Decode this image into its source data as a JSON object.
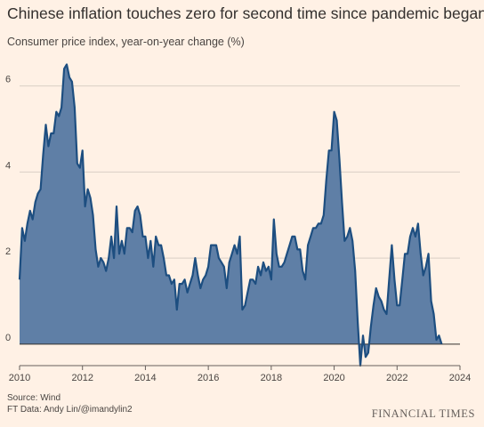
{
  "header": {
    "title": "Chinese inflation touches zero for second time since pandemic began",
    "subtitle": "Consumer price index, year-on-year change (%)"
  },
  "footer": {
    "source": "Source: Wind",
    "credit": "FT Data: Andy Lin/@imandylin2",
    "brand": "FINANCIAL TIMES"
  },
  "colors": {
    "background": "#fff1e5",
    "area_fill": "#5f7fa6",
    "line": "#1d4e80",
    "grid": "#d9cfc5",
    "zero_line": "#33302e"
  },
  "chart_data": {
    "type": "area",
    "title": "Chinese inflation touches zero for second time since pandemic began",
    "subtitle": "Consumer price index, year-on-year change (%)",
    "xlabel": "",
    "ylabel": "",
    "xlim": [
      2010,
      2024
    ],
    "ylim": [
      -0.5,
      6.8
    ],
    "x_ticks": [
      2010,
      2012,
      2014,
      2016,
      2018,
      2020,
      2022,
      2024
    ],
    "y_ticks": [
      0,
      2,
      4,
      6
    ],
    "grid": true,
    "series": [
      {
        "x": [
          2010.0,
          2010.083,
          2010.167,
          2010.25,
          2010.333,
          2010.417,
          2010.5,
          2010.583,
          2010.667,
          2010.75,
          2010.833,
          2010.917,
          2011.0,
          2011.083,
          2011.167,
          2011.25,
          2011.333,
          2011.417,
          2011.5,
          2011.583,
          2011.667,
          2011.75,
          2011.833,
          2011.917,
          2012.0,
          2012.083,
          2012.167,
          2012.25,
          2012.333,
          2012.417,
          2012.5,
          2012.583,
          2012.667,
          2012.75,
          2012.833,
          2012.917,
          2013.0,
          2013.083,
          2013.167,
          2013.25,
          2013.333,
          2013.417,
          2013.5,
          2013.583,
          2013.667,
          2013.75,
          2013.833,
          2013.917,
          2014.0,
          2014.083,
          2014.167,
          2014.25,
          2014.333,
          2014.417,
          2014.5,
          2014.583,
          2014.667,
          2014.75,
          2014.833,
          2014.917,
          2015.0,
          2015.083,
          2015.167,
          2015.25,
          2015.333,
          2015.417,
          2015.5,
          2015.583,
          2015.667,
          2015.75,
          2015.833,
          2015.917,
          2016.0,
          2016.083,
          2016.167,
          2016.25,
          2016.333,
          2016.417,
          2016.5,
          2016.583,
          2016.667,
          2016.75,
          2016.833,
          2016.917,
          2017.0,
          2017.083,
          2017.167,
          2017.25,
          2017.333,
          2017.417,
          2017.5,
          2017.583,
          2017.667,
          2017.75,
          2017.833,
          2017.917,
          2018.0,
          2018.083,
          2018.167,
          2018.25,
          2018.333,
          2018.417,
          2018.5,
          2018.583,
          2018.667,
          2018.75,
          2018.833,
          2018.917,
          2019.0,
          2019.083,
          2019.167,
          2019.25,
          2019.333,
          2019.417,
          2019.5,
          2019.583,
          2019.667,
          2019.75,
          2019.833,
          2019.917,
          2020.0,
          2020.083,
          2020.167,
          2020.25,
          2020.333,
          2020.417,
          2020.5,
          2020.583,
          2020.667,
          2020.75,
          2020.833,
          2020.917,
          2021.0,
          2021.083,
          2021.167,
          2021.25,
          2021.333,
          2021.417,
          2021.5,
          2021.583,
          2021.667,
          2021.75,
          2021.833,
          2021.917,
          2022.0,
          2022.083,
          2022.167,
          2022.25,
          2022.333,
          2022.417,
          2022.5,
          2022.583,
          2022.667,
          2022.75,
          2022.833,
          2022.917,
          2023.0,
          2023.083,
          2023.167,
          2023.25,
          2023.333,
          2023.417
        ],
        "values": [
          1.5,
          2.7,
          2.4,
          2.8,
          3.1,
          2.9,
          3.3,
          3.5,
          3.6,
          4.4,
          5.1,
          4.6,
          4.9,
          4.9,
          5.4,
          5.3,
          5.5,
          6.4,
          6.5,
          6.2,
          6.1,
          5.5,
          4.2,
          4.1,
          4.5,
          3.2,
          3.6,
          3.4,
          3.0,
          2.2,
          1.8,
          2.0,
          1.9,
          1.7,
          2.0,
          2.5,
          2.0,
          3.2,
          2.1,
          2.4,
          2.1,
          2.7,
          2.7,
          2.6,
          3.1,
          3.2,
          3.0,
          2.5,
          2.5,
          2.0,
          2.4,
          1.8,
          2.5,
          2.3,
          2.3,
          2.0,
          1.6,
          1.6,
          1.4,
          1.5,
          0.8,
          1.4,
          1.4,
          1.5,
          1.2,
          1.4,
          1.6,
          2.0,
          1.6,
          1.3,
          1.5,
          1.6,
          1.8,
          2.3,
          2.3,
          2.3,
          2.0,
          1.9,
          1.8,
          1.3,
          1.9,
          2.1,
          2.3,
          2.1,
          2.5,
          0.8,
          0.9,
          1.2,
          1.5,
          1.5,
          1.4,
          1.8,
          1.6,
          1.9,
          1.7,
          1.8,
          1.5,
          2.9,
          2.1,
          1.8,
          1.8,
          1.9,
          2.1,
          2.3,
          2.5,
          2.5,
          2.2,
          2.2,
          1.7,
          1.5,
          2.3,
          2.5,
          2.7,
          2.7,
          2.8,
          2.8,
          3.0,
          3.8,
          4.5,
          4.5,
          5.4,
          5.2,
          4.3,
          3.3,
          2.4,
          2.5,
          2.7,
          2.4,
          1.7,
          0.5,
          -0.5,
          0.2,
          -0.3,
          -0.2,
          0.4,
          0.9,
          1.3,
          1.1,
          1.0,
          0.8,
          0.7,
          1.5,
          2.3,
          1.5,
          0.9,
          0.9,
          1.5,
          2.1,
          2.1,
          2.5,
          2.7,
          2.5,
          2.8,
          2.1,
          1.6,
          1.8,
          2.1,
          1.0,
          0.7,
          0.1,
          0.2,
          0.0
        ]
      }
    ]
  }
}
